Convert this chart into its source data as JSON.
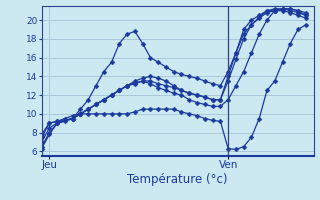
{
  "xlabel": "Température (°c)",
  "bg_color": "#cce8f0",
  "grid_color": "#aac8d8",
  "line_color": "#1a3a9e",
  "marker": "D",
  "markersize": 2.5,
  "linewidth": 0.9,
  "ylim": [
    5.5,
    21.5
  ],
  "xlim": [
    0,
    35
  ],
  "yticks": [
    6,
    8,
    10,
    12,
    14,
    16,
    18,
    20
  ],
  "xtick_jeu_x": 1,
  "xtick_ven_x": 24,
  "vline_x": 24,
  "lines": [
    [
      6.3,
      7.8,
      9.0,
      9.3,
      9.5,
      10.5,
      11.5,
      13.0,
      14.5,
      15.5,
      17.5,
      18.5,
      18.8,
      17.5,
      16.0,
      15.5,
      15.0,
      14.5,
      14.2,
      14.0,
      13.8,
      13.5,
      13.2,
      13.0,
      14.5,
      16.5,
      18.5,
      19.5,
      20.3,
      21.0,
      21.0,
      21.2,
      21.2,
      21.0,
      20.5
    ],
    [
      6.5,
      8.0,
      9.0,
      9.3,
      9.5,
      10.0,
      10.5,
      11.0,
      11.5,
      12.0,
      12.5,
      13.0,
      13.5,
      13.8,
      14.0,
      13.8,
      13.5,
      13.0,
      12.5,
      12.2,
      12.0,
      11.8,
      11.5,
      11.5,
      14.0,
      16.5,
      19.0,
      20.0,
      20.5,
      21.0,
      21.2,
      21.2,
      21.0,
      20.8,
      20.5
    ],
    [
      7.0,
      8.5,
      9.0,
      9.2,
      9.5,
      10.0,
      10.5,
      11.0,
      11.5,
      12.0,
      12.5,
      13.0,
      13.3,
      13.5,
      13.5,
      13.2,
      13.0,
      12.8,
      12.5,
      12.2,
      12.0,
      11.8,
      11.5,
      11.5,
      13.5,
      15.8,
      18.0,
      19.5,
      20.2,
      20.8,
      21.0,
      21.0,
      20.8,
      20.5,
      20.2
    ],
    [
      7.5,
      9.0,
      9.2,
      9.3,
      9.5,
      10.0,
      10.5,
      11.0,
      11.5,
      12.0,
      12.5,
      13.0,
      13.2,
      13.5,
      13.2,
      12.8,
      12.5,
      12.2,
      12.0,
      11.5,
      11.2,
      11.0,
      10.8,
      10.8,
      11.5,
      13.0,
      14.5,
      16.5,
      18.5,
      20.0,
      21.0,
      21.2,
      21.2,
      21.0,
      20.8
    ],
    [
      7.8,
      9.0,
      9.2,
      9.5,
      9.8,
      10.0,
      10.0,
      10.0,
      10.0,
      10.0,
      10.0,
      10.0,
      10.2,
      10.5,
      10.5,
      10.5,
      10.5,
      10.5,
      10.2,
      10.0,
      9.8,
      9.5,
      9.3,
      9.2,
      6.3,
      6.2,
      6.5,
      7.5,
      9.5,
      12.5,
      13.5,
      15.5,
      17.5,
      19.0,
      19.5
    ]
  ]
}
